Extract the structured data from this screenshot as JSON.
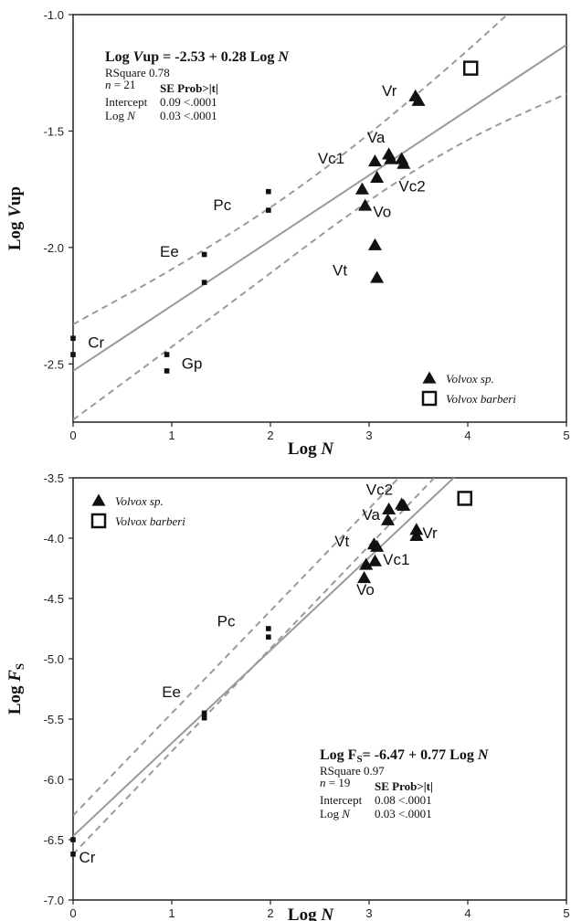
{
  "chart_data": [
    {
      "type": "scatter",
      "xlabel": "Log N",
      "ylabel": "Log Vup",
      "xlim": [
        0,
        5
      ],
      "ylim": [
        -2.75,
        -1.0
      ],
      "xticks": [
        "0",
        "1",
        "2",
        "3",
        "4",
        "5"
      ],
      "yticks": [
        "-1.0",
        "-1.5",
        "-2.0",
        "-2.5"
      ],
      "equation": {
        "lhs": "Log Vup =",
        "rhs": "-2.53 + 0.28 Log N"
      },
      "stats": {
        "rsquare_label": "RSquare",
        "rsquare": "0.78",
        "n_label": "n =",
        "n": "21",
        "header": "SE Prob>|t|",
        "rows": [
          {
            "label": "Intercept",
            "se": "0.09",
            "p": "<.0001"
          },
          {
            "label": "Log N",
            "se": "0.03",
            "p": "<.0001"
          }
        ]
      },
      "fit": {
        "intercept": -2.53,
        "slope": 0.28
      },
      "ci_upper": [
        [
          0,
          -2.33
        ],
        [
          1.2,
          -2.05
        ],
        [
          2.5,
          -1.69
        ],
        [
          4.0,
          -1.16
        ],
        [
          5,
          -0.76
        ]
      ],
      "ci_lower": [
        [
          0,
          -2.74
        ],
        [
          1.5,
          -2.27
        ],
        [
          3.0,
          -1.79
        ],
        [
          4.0,
          -1.53
        ],
        [
          5,
          -1.34
        ]
      ],
      "legend": {
        "placement": "bottom-right",
        "items": [
          {
            "marker": "triangle",
            "label": "Volvox sp."
          },
          {
            "marker": "open-square",
            "label": "Volvox barberi"
          }
        ]
      },
      "labels": [
        {
          "text": "Cr",
          "x": 0.15,
          "y": -2.43,
          "color": "#111111"
        },
        {
          "text": "Gp",
          "x": 1.1,
          "y": -2.52,
          "color": "#111111"
        },
        {
          "text": "Ee",
          "x": 0.88,
          "y": -2.04,
          "color": "#111111"
        },
        {
          "text": "Pc",
          "x": 1.42,
          "y": -1.84,
          "color": "#111111"
        },
        {
          "text": "Vc1",
          "x": 2.48,
          "y": -1.64,
          "color": "#111111"
        },
        {
          "text": "Va",
          "x": 2.98,
          "y": -1.55,
          "color": "#111111"
        },
        {
          "text": "Vr",
          "x": 3.13,
          "y": -1.35,
          "color": "#111111"
        },
        {
          "text": "Vc2",
          "x": 3.3,
          "y": -1.76,
          "color": "#7a7a7a"
        },
        {
          "text": "Vo",
          "x": 3.04,
          "y": -1.87,
          "color": "#111111"
        },
        {
          "text": "Vt",
          "x": 2.63,
          "y": -2.12,
          "color": "#111111"
        }
      ],
      "series": [
        {
          "marker": "small-square",
          "points": [
            [
              0,
              -2.39
            ],
            [
              0,
              -2.46
            ],
            [
              0.95,
              -2.46
            ],
            [
              0.95,
              -2.53
            ],
            [
              1.33,
              -2.03
            ],
            [
              1.33,
              -2.15
            ],
            [
              1.98,
              -1.76
            ],
            [
              1.98,
              -1.84
            ]
          ]
        },
        {
          "marker": "triangle",
          "points": [
            [
              3.47,
              -1.35
            ],
            [
              3.5,
              -1.37
            ],
            [
              3.2,
              -1.6
            ],
            [
              3.22,
              -1.62
            ],
            [
              3.06,
              -1.63
            ],
            [
              3.33,
              -1.62
            ],
            [
              3.35,
              -1.64
            ],
            [
              3.08,
              -1.7
            ],
            [
              2.93,
              -1.75
            ],
            [
              2.96,
              -1.82
            ],
            [
              3.06,
              -1.99
            ],
            [
              3.08,
              -2.13
            ]
          ]
        },
        {
          "marker": "open-square",
          "points": [
            [
              4.03,
              -1.23
            ]
          ]
        }
      ]
    },
    {
      "type": "scatter",
      "xlabel": "Log N",
      "ylabel": "Log FS",
      "xlim": [
        0,
        5
      ],
      "ylim": [
        -7.0,
        -3.5
      ],
      "xticks": [
        "0",
        "1",
        "2",
        "3",
        "4",
        "5"
      ],
      "yticks": [
        "-3.5",
        "-4.0",
        "-4.5",
        "-5.0",
        "-5.5",
        "-6.0",
        "-6.5",
        "-7.0"
      ],
      "equation": {
        "lhs": "Log FS=",
        "rhs": "-6.47 + 0.77 Log N"
      },
      "stats": {
        "rsquare_label": "RSquare",
        "rsquare": "0.97",
        "n_label": "n =",
        "n": "19",
        "header": "SE Prob>|t|",
        "rows": [
          {
            "label": "Intercept",
            "se": "0.08",
            "p": "<.0001"
          },
          {
            "label": "Log N",
            "se": "0.03",
            "p": "<.0001"
          }
        ]
      },
      "fit": {
        "intercept": -6.47,
        "slope": 0.77
      },
      "ci_upper": [
        [
          0,
          -6.3
        ],
        [
          3.3,
          -3.5
        ]
      ],
      "ci_lower": [
        [
          0,
          -6.62
        ],
        [
          3.66,
          -3.5
        ]
      ],
      "legend": {
        "placement": "top-left",
        "items": [
          {
            "marker": "triangle",
            "label": "Volvox sp."
          },
          {
            "marker": "open-square",
            "label": "Volvox barberi"
          }
        ]
      },
      "labels": [
        {
          "text": "Cr",
          "x": 0.06,
          "y": -6.69,
          "color": "#111111"
        },
        {
          "text": "Ee",
          "x": 0.9,
          "y": -5.32,
          "color": "#111111"
        },
        {
          "text": "Pc",
          "x": 1.46,
          "y": -4.73,
          "color": "#111111"
        },
        {
          "text": "Vt",
          "x": 2.65,
          "y": -4.07,
          "color": "#111111"
        },
        {
          "text": "Va",
          "x": 2.93,
          "y": -3.85,
          "color": "#111111"
        },
        {
          "text": "Vc2",
          "x": 2.97,
          "y": -3.64,
          "color": "#7a7a7a"
        },
        {
          "text": "Vr",
          "x": 3.54,
          "y": -4.0,
          "color": "#111111"
        },
        {
          "text": "Vc1",
          "x": 3.14,
          "y": -4.22,
          "color": "#7a7a7a"
        },
        {
          "text": "Vo",
          "x": 2.87,
          "y": -4.47,
          "color": "#111111"
        }
      ],
      "series": [
        {
          "marker": "small-square",
          "points": [
            [
              0,
              -6.5
            ],
            [
              0,
              -6.62
            ],
            [
              1.33,
              -5.45
            ],
            [
              1.33,
              -5.49
            ],
            [
              1.98,
              -4.75
            ],
            [
              1.98,
              -4.82
            ]
          ]
        },
        {
          "marker": "triangle",
          "points": [
            [
              3.2,
              -3.76
            ],
            [
              3.33,
              -3.72
            ],
            [
              3.35,
              -3.73
            ],
            [
              3.19,
              -3.85
            ],
            [
              3.48,
              -3.93
            ],
            [
              3.48,
              -3.98
            ],
            [
              3.05,
              -4.05
            ],
            [
              3.08,
              -4.07
            ],
            [
              3.06,
              -4.19
            ],
            [
              2.97,
              -4.22
            ],
            [
              2.95,
              -4.33
            ]
          ]
        },
        {
          "marker": "open-square",
          "points": [
            [
              3.97,
              -3.67
            ]
          ]
        }
      ]
    }
  ]
}
